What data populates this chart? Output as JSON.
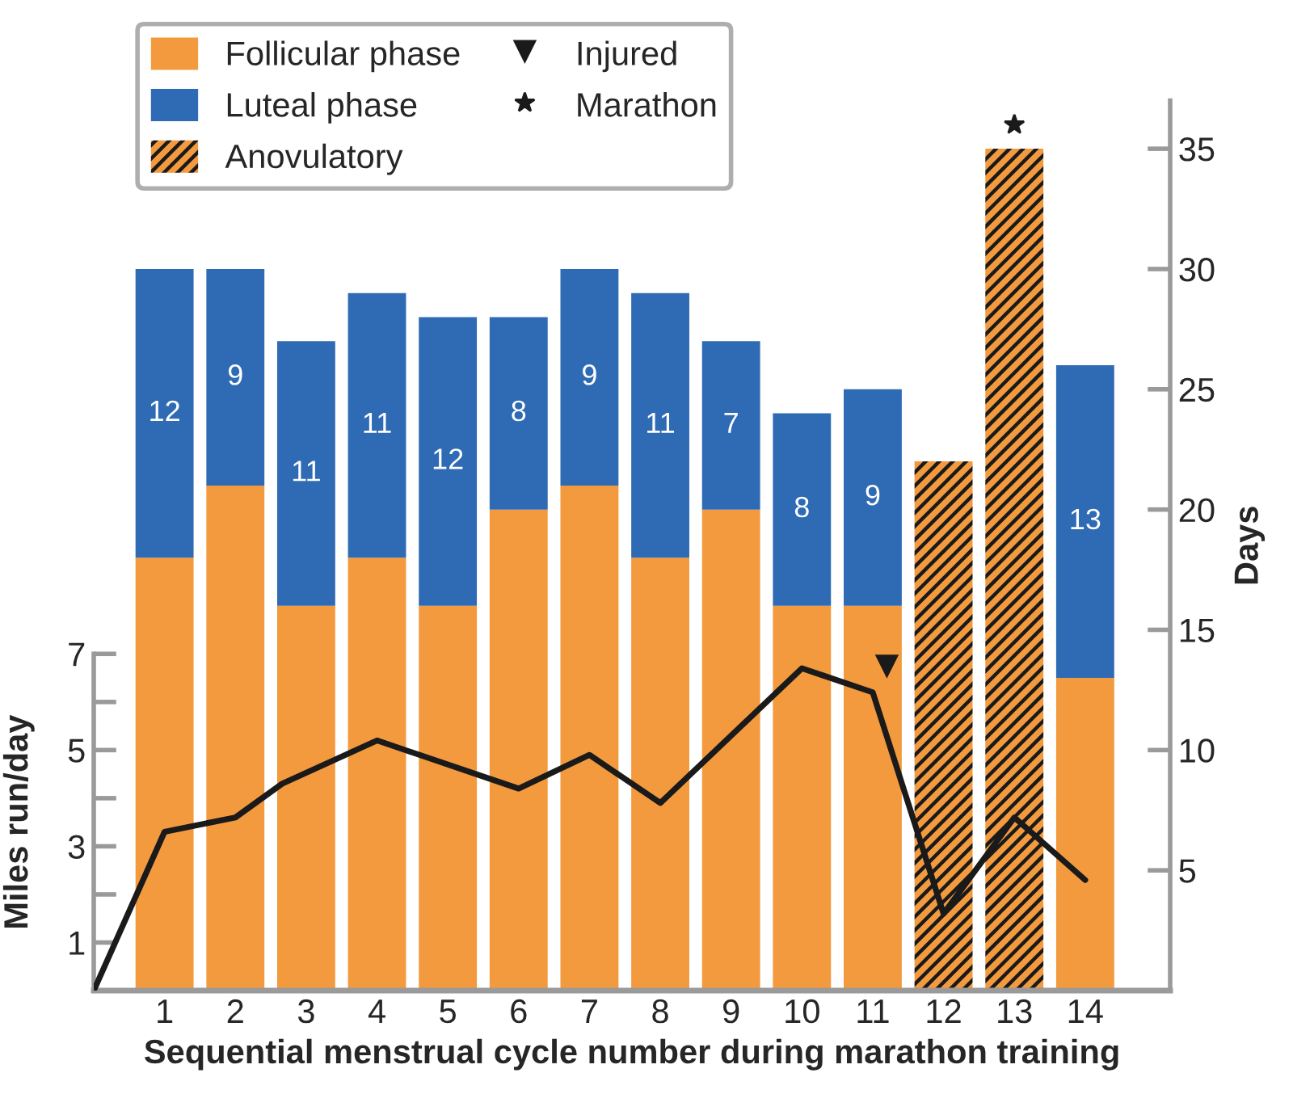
{
  "chart_data": {
    "type": "bar",
    "stacked": true,
    "xlabel": "Sequential menstrual cycle number during marathon training",
    "ylabel": "Miles run/day",
    "y2label": "Days",
    "x": [
      1,
      2,
      3,
      4,
      5,
      6,
      7,
      8,
      9,
      10,
      11,
      12,
      13,
      14
    ],
    "xlim": [
      0,
      15.2
    ],
    "xticks": [
      1,
      2,
      3,
      4,
      5,
      6,
      7,
      8,
      9,
      10,
      11,
      12,
      13,
      14
    ],
    "ylim": [
      0,
      18.5
    ],
    "yticks": [
      {
        "value": 0,
        "label": null
      },
      1,
      {
        "value": 2,
        "label": null
      },
      3,
      {
        "value": 4,
        "label": null
      },
      5,
      {
        "value": 6,
        "label": null
      },
      7
    ],
    "y2lim": [
      0,
      37
    ],
    "y2ticks": [
      {
        "value": 0,
        "label": null
      },
      5,
      10,
      15,
      20,
      25,
      30,
      35
    ],
    "legend": "top left",
    "grid": false,
    "series": [
      {
        "name": "Follicular phase",
        "axis": "y2",
        "color": "#f39a3e",
        "values": [
          18,
          21,
          16,
          18,
          16,
          20,
          21,
          18,
          20,
          16,
          16,
          null,
          null,
          13
        ]
      },
      {
        "name": "Luteal phase",
        "axis": "y2",
        "color": "#2f6bb4",
        "values": [
          12,
          9,
          11,
          11,
          12,
          8,
          9,
          11,
          7,
          8,
          9,
          null,
          null,
          13
        ],
        "value_labels": [
          "12",
          "9",
          "11",
          "11",
          "12",
          "8",
          "9",
          "11",
          "7",
          "8",
          "9",
          null,
          null,
          "13"
        ]
      },
      {
        "name": "Anovulatory",
        "axis": "y2",
        "color": "#f39a3e",
        "values": [
          null,
          null,
          null,
          null,
          null,
          null,
          null,
          null,
          null,
          null,
          null,
          22,
          35,
          null
        ]
      },
      {
        "type": "line",
        "axis": "y",
        "color": "#1a1a1a",
        "x": [
          0,
          1,
          2,
          2.66,
          4,
          6,
          7,
          8,
          10,
          11,
          12,
          13,
          14
        ],
        "values": [
          0,
          3.3,
          3.6,
          4.3,
          5.2,
          4.2,
          4.9,
          3.9,
          6.7,
          6.2,
          1.6,
          3.6,
          2.3
        ]
      },
      {
        "name": "Injured",
        "type": "scatter",
        "axis": "y2",
        "marker": "triangle",
        "color": "#1a1a1a",
        "x": [
          11.2
        ],
        "values": [
          13.5
        ]
      },
      {
        "name": "Marathon",
        "type": "scatter",
        "axis": "y2",
        "marker": "star",
        "color": "#1a1a1a",
        "x": [
          13
        ],
        "values": [
          36
        ]
      }
    ]
  }
}
